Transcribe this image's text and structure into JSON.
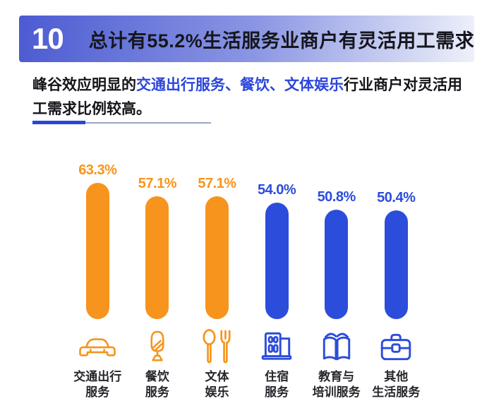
{
  "header": {
    "badge": "10",
    "title": "总计有55.2%生活服务业商户有灵活用工需求"
  },
  "subtitle": {
    "segments": [
      {
        "text": "峰谷效应明显的",
        "highlight": false
      },
      {
        "text": "交通出行服务、餐饮、文体娱乐",
        "highlight": true
      },
      {
        "text": "行业商户对灵活用工需求比例较高。",
        "highlight": false
      }
    ]
  },
  "colors": {
    "orange": "#F7941D",
    "blue": "#2C4CDB",
    "accent_text": "#2B46DC",
    "header_gradient_start": "#4C5BD2",
    "header_gradient_end": "#EEF1FA"
  },
  "chart_data": {
    "type": "bar",
    "title": "总计有55.2%生活服务业商户有灵活用工需求",
    "unit": "%",
    "ylim": [
      0,
      70
    ],
    "grid": false,
    "categories": [
      "交通出行服务",
      "餐饮服务",
      "文体娱乐",
      "住宿服务",
      "教育与培训服务",
      "其他生活服务"
    ],
    "values": [
      63.3,
      57.1,
      57.1,
      54.0,
      50.8,
      50.4
    ],
    "bar_colors": [
      "#F7941D",
      "#F7941D",
      "#F7941D",
      "#2C4CDB",
      "#2C4CDB",
      "#2C4CDB"
    ],
    "items": [
      {
        "value": 63.3,
        "value_label": "63.3%",
        "line1": "交通出行",
        "line2": "服务",
        "icon": "car-icon",
        "color": "#F7941D"
      },
      {
        "value": 57.1,
        "value_label": "57.1%",
        "line1": "餐饮",
        "line2": "服务",
        "icon": "drink-cup-icon",
        "color": "#F7941D"
      },
      {
        "value": 57.1,
        "value_label": "57.1%",
        "line1": "文体",
        "line2": "娱乐",
        "icon": "cutlery-icon",
        "color": "#F7941D"
      },
      {
        "value": 54.0,
        "value_label": "54.0%",
        "line1": "住宿",
        "line2": "服务",
        "icon": "building-icon",
        "color": "#2C4CDB"
      },
      {
        "value": 50.8,
        "value_label": "50.8%",
        "line1": "教育与",
        "line2": "培训服务",
        "icon": "open-book-icon",
        "color": "#2C4CDB"
      },
      {
        "value": 50.4,
        "value_label": "50.4%",
        "line1": "其他",
        "line2": "生活服务",
        "icon": "briefcase-icon",
        "color": "#2C4CDB"
      }
    ]
  }
}
